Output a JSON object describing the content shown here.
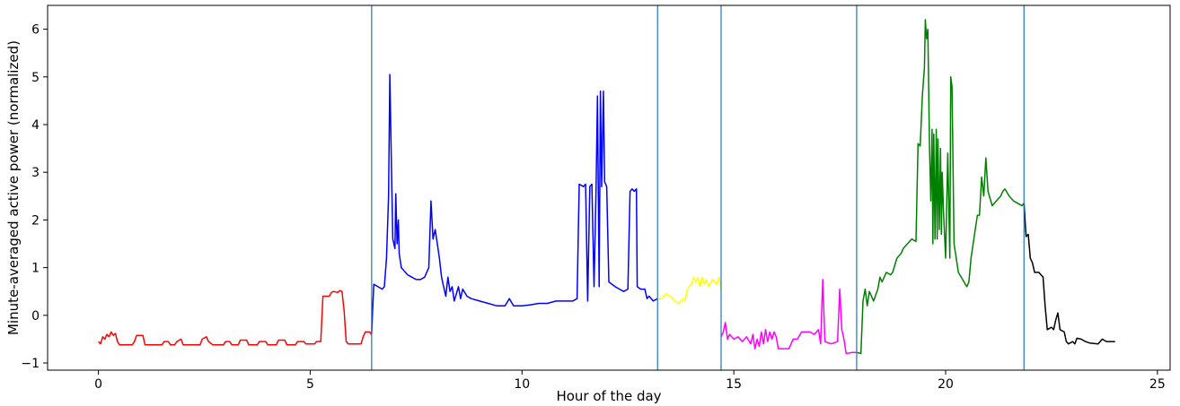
{
  "chart_data": {
    "type": "line",
    "title": "",
    "xlabel": "Hour of the day",
    "ylabel": "Minute-averaged active power (normalized)",
    "xlim": [
      -1.2,
      25.3
    ],
    "ylim": [
      -1.15,
      6.5
    ],
    "xticks": [
      0,
      5,
      10,
      15,
      20,
      25
    ],
    "xtick_labels": [
      "0",
      "5",
      "10",
      "15",
      "20",
      "25"
    ],
    "yticks": [
      -1,
      0,
      1,
      2,
      3,
      4,
      5,
      6
    ],
    "ytick_labels": [
      "−1",
      "0",
      "1",
      "2",
      "3",
      "4",
      "5",
      "6"
    ],
    "grid": false,
    "legend": "none",
    "segment_boundaries": [
      6.45,
      13.2,
      14.7,
      17.9,
      21.85
    ],
    "boundary_color": "#1f77b4",
    "series": [
      {
        "color": "#ff0000",
        "points": [
          [
            0,
            -0.55
          ],
          [
            0.05,
            -0.6
          ],
          [
            0.1,
            -0.45
          ],
          [
            0.15,
            -0.5
          ],
          [
            0.2,
            -0.4
          ],
          [
            0.25,
            -0.45
          ],
          [
            0.3,
            -0.35
          ],
          [
            0.35,
            -0.42
          ],
          [
            0.4,
            -0.38
          ],
          [
            0.45,
            -0.55
          ],
          [
            0.5,
            -0.62
          ],
          [
            0.8,
            -0.62
          ],
          [
            0.85,
            -0.55
          ],
          [
            0.9,
            -0.42
          ],
          [
            1.05,
            -0.42
          ],
          [
            1.1,
            -0.62
          ],
          [
            1.5,
            -0.62
          ],
          [
            1.55,
            -0.55
          ],
          [
            1.65,
            -0.55
          ],
          [
            1.7,
            -0.62
          ],
          [
            1.8,
            -0.62
          ],
          [
            1.85,
            -0.55
          ],
          [
            1.95,
            -0.5
          ],
          [
            2.0,
            -0.62
          ],
          [
            2.4,
            -0.62
          ],
          [
            2.45,
            -0.5
          ],
          [
            2.55,
            -0.45
          ],
          [
            2.6,
            -0.55
          ],
          [
            2.7,
            -0.62
          ],
          [
            2.95,
            -0.62
          ],
          [
            3.0,
            -0.55
          ],
          [
            3.1,
            -0.55
          ],
          [
            3.15,
            -0.62
          ],
          [
            3.3,
            -0.62
          ],
          [
            3.35,
            -0.52
          ],
          [
            3.5,
            -0.52
          ],
          [
            3.55,
            -0.62
          ],
          [
            3.75,
            -0.62
          ],
          [
            3.8,
            -0.55
          ],
          [
            3.95,
            -0.55
          ],
          [
            4.0,
            -0.62
          ],
          [
            4.2,
            -0.62
          ],
          [
            4.25,
            -0.52
          ],
          [
            4.4,
            -0.52
          ],
          [
            4.45,
            -0.62
          ],
          [
            4.65,
            -0.62
          ],
          [
            4.7,
            -0.55
          ],
          [
            4.85,
            -0.55
          ],
          [
            4.9,
            -0.6
          ],
          [
            5.1,
            -0.6
          ],
          [
            5.15,
            -0.55
          ],
          [
            5.25,
            -0.55
          ],
          [
            5.3,
            0.4
          ],
          [
            5.45,
            0.4
          ],
          [
            5.5,
            0.48
          ],
          [
            5.55,
            0.5
          ],
          [
            5.65,
            0.48
          ],
          [
            5.7,
            0.52
          ],
          [
            5.75,
            0.5
          ],
          [
            5.8,
            0.1
          ],
          [
            5.85,
            -0.55
          ],
          [
            5.9,
            -0.6
          ],
          [
            6.2,
            -0.6
          ],
          [
            6.25,
            -0.45
          ],
          [
            6.3,
            -0.35
          ],
          [
            6.4,
            -0.35
          ],
          [
            6.45,
            -0.4
          ]
        ]
      },
      {
        "color": "#0000ff",
        "points": [
          [
            6.45,
            -0.4
          ],
          [
            6.5,
            0.65
          ],
          [
            6.6,
            0.6
          ],
          [
            6.7,
            0.55
          ],
          [
            6.75,
            0.6
          ],
          [
            6.8,
            1.2
          ],
          [
            6.85,
            2.5
          ],
          [
            6.88,
            5.05
          ],
          [
            6.92,
            3.0
          ],
          [
            6.95,
            1.6
          ],
          [
            7.0,
            1.4
          ],
          [
            7.02,
            2.55
          ],
          [
            7.05,
            1.5
          ],
          [
            7.08,
            2.0
          ],
          [
            7.1,
            1.3
          ],
          [
            7.15,
            1.0
          ],
          [
            7.2,
            0.95
          ],
          [
            7.3,
            0.85
          ],
          [
            7.4,
            0.8
          ],
          [
            7.5,
            0.75
          ],
          [
            7.6,
            0.75
          ],
          [
            7.7,
            0.8
          ],
          [
            7.8,
            1.0
          ],
          [
            7.85,
            2.4
          ],
          [
            7.9,
            1.6
          ],
          [
            7.95,
            1.8
          ],
          [
            8.0,
            1.5
          ],
          [
            8.05,
            1.2
          ],
          [
            8.1,
            0.8
          ],
          [
            8.15,
            0.6
          ],
          [
            8.2,
            0.4
          ],
          [
            8.25,
            0.8
          ],
          [
            8.3,
            0.5
          ],
          [
            8.35,
            0.6
          ],
          [
            8.4,
            0.3
          ],
          [
            8.5,
            0.6
          ],
          [
            8.55,
            0.35
          ],
          [
            8.6,
            0.55
          ],
          [
            8.7,
            0.4
          ],
          [
            8.8,
            0.35
          ],
          [
            9.0,
            0.3
          ],
          [
            9.2,
            0.25
          ],
          [
            9.4,
            0.2
          ],
          [
            9.6,
            0.2
          ],
          [
            9.7,
            0.35
          ],
          [
            9.8,
            0.2
          ],
          [
            10.0,
            0.2
          ],
          [
            10.2,
            0.22
          ],
          [
            10.4,
            0.25
          ],
          [
            10.6,
            0.25
          ],
          [
            10.8,
            0.3
          ],
          [
            11.0,
            0.3
          ],
          [
            11.2,
            0.3
          ],
          [
            11.3,
            0.35
          ],
          [
            11.35,
            2.75
          ],
          [
            11.45,
            2.7
          ],
          [
            11.5,
            2.75
          ],
          [
            11.55,
            0.3
          ],
          [
            11.6,
            2.7
          ],
          [
            11.65,
            2.75
          ],
          [
            11.7,
            0.6
          ],
          [
            11.75,
            2.7
          ],
          [
            11.78,
            4.6
          ],
          [
            11.82,
            0.6
          ],
          [
            11.85,
            4.7
          ],
          [
            11.88,
            2.7
          ],
          [
            11.92,
            4.7
          ],
          [
            11.95,
            2.8
          ],
          [
            12.0,
            2.7
          ],
          [
            12.05,
            0.7
          ],
          [
            12.2,
            0.6
          ],
          [
            12.3,
            0.55
          ],
          [
            12.4,
            0.5
          ],
          [
            12.5,
            0.55
          ],
          [
            12.55,
            2.6
          ],
          [
            12.6,
            2.65
          ],
          [
            12.65,
            2.6
          ],
          [
            12.7,
            2.65
          ],
          [
            12.72,
            0.6
          ],
          [
            12.8,
            0.55
          ],
          [
            12.9,
            0.55
          ],
          [
            12.95,
            0.35
          ],
          [
            13.0,
            0.4
          ],
          [
            13.1,
            0.3
          ],
          [
            13.2,
            0.35
          ]
        ]
      },
      {
        "color": "#ffff00",
        "points": [
          [
            13.2,
            0.35
          ],
          [
            13.3,
            0.35
          ],
          [
            13.4,
            0.45
          ],
          [
            13.5,
            0.4
          ],
          [
            13.6,
            0.3
          ],
          [
            13.7,
            0.25
          ],
          [
            13.8,
            0.35
          ],
          [
            13.85,
            0.3
          ],
          [
            13.9,
            0.55
          ],
          [
            14.0,
            0.65
          ],
          [
            14.05,
            0.8
          ],
          [
            14.1,
            0.7
          ],
          [
            14.15,
            0.8
          ],
          [
            14.2,
            0.6
          ],
          [
            14.25,
            0.8
          ],
          [
            14.3,
            0.65
          ],
          [
            14.35,
            0.75
          ],
          [
            14.4,
            0.6
          ],
          [
            14.5,
            0.75
          ],
          [
            14.6,
            0.65
          ],
          [
            14.65,
            0.8
          ],
          [
            14.7,
            0.55
          ]
        ]
      },
      {
        "color": "#ff00ff",
        "points": [
          [
            14.7,
            -0.45
          ],
          [
            14.75,
            -0.35
          ],
          [
            14.8,
            -0.15
          ],
          [
            14.85,
            -0.5
          ],
          [
            14.9,
            -0.4
          ],
          [
            15.0,
            -0.5
          ],
          [
            15.1,
            -0.45
          ],
          [
            15.2,
            -0.55
          ],
          [
            15.3,
            -0.45
          ],
          [
            15.4,
            -0.6
          ],
          [
            15.45,
            -0.4
          ],
          [
            15.5,
            -0.7
          ],
          [
            15.55,
            -0.5
          ],
          [
            15.6,
            -0.65
          ],
          [
            15.65,
            -0.35
          ],
          [
            15.7,
            -0.6
          ],
          [
            15.75,
            -0.3
          ],
          [
            15.8,
            -0.55
          ],
          [
            15.85,
            -0.35
          ],
          [
            15.9,
            -0.5
          ],
          [
            15.95,
            -0.35
          ],
          [
            16.0,
            -0.45
          ],
          [
            16.05,
            -0.7
          ],
          [
            16.3,
            -0.7
          ],
          [
            16.4,
            -0.5
          ],
          [
            16.5,
            -0.5
          ],
          [
            16.6,
            -0.35
          ],
          [
            16.8,
            -0.35
          ],
          [
            16.9,
            -0.4
          ],
          [
            17.0,
            -0.3
          ],
          [
            17.05,
            -0.6
          ],
          [
            17.1,
            0.75
          ],
          [
            17.15,
            -0.55
          ],
          [
            17.3,
            -0.6
          ],
          [
            17.45,
            -0.55
          ],
          [
            17.5,
            0.55
          ],
          [
            17.55,
            -0.3
          ],
          [
            17.6,
            -0.5
          ],
          [
            17.65,
            -0.8
          ],
          [
            17.8,
            -0.78
          ],
          [
            17.9,
            -0.78
          ]
        ]
      },
      {
        "color": "#008000",
        "points": [
          [
            17.9,
            -0.78
          ],
          [
            18.0,
            -0.8
          ],
          [
            18.05,
            0.3
          ],
          [
            18.1,
            0.55
          ],
          [
            18.15,
            0.2
          ],
          [
            18.2,
            0.5
          ],
          [
            18.3,
            0.3
          ],
          [
            18.4,
            0.55
          ],
          [
            18.45,
            0.8
          ],
          [
            18.5,
            0.7
          ],
          [
            18.6,
            0.9
          ],
          [
            18.7,
            0.85
          ],
          [
            18.75,
            0.9
          ],
          [
            18.85,
            1.2
          ],
          [
            18.95,
            1.3
          ],
          [
            19.0,
            1.4
          ],
          [
            19.1,
            1.5
          ],
          [
            19.2,
            1.6
          ],
          [
            19.3,
            1.55
          ],
          [
            19.35,
            3.6
          ],
          [
            19.4,
            3.55
          ],
          [
            19.45,
            4.6
          ],
          [
            19.5,
            5.2
          ],
          [
            19.52,
            6.2
          ],
          [
            19.55,
            5.8
          ],
          [
            19.58,
            6.0
          ],
          [
            19.62,
            3.5
          ],
          [
            19.65,
            2.4
          ],
          [
            19.68,
            3.9
          ],
          [
            19.7,
            1.5
          ],
          [
            19.72,
            3.8
          ],
          [
            19.75,
            1.6
          ],
          [
            19.78,
            3.9
          ],
          [
            19.8,
            1.6
          ],
          [
            19.82,
            3.7
          ],
          [
            19.85,
            1.8
          ],
          [
            19.88,
            3.5
          ],
          [
            19.9,
            1.7
          ],
          [
            19.92,
            3.0
          ],
          [
            19.95,
            2.2
          ],
          [
            20.0,
            1.2
          ],
          [
            20.05,
            3.4
          ],
          [
            20.1,
            1.2
          ],
          [
            20.12,
            5.0
          ],
          [
            20.15,
            4.8
          ],
          [
            20.2,
            1.5
          ],
          [
            20.3,
            0.9
          ],
          [
            20.4,
            0.75
          ],
          [
            20.5,
            0.6
          ],
          [
            20.55,
            0.7
          ],
          [
            20.6,
            1.2
          ],
          [
            20.7,
            1.8
          ],
          [
            20.75,
            2.1
          ],
          [
            20.8,
            2.1
          ],
          [
            20.85,
            2.9
          ],
          [
            20.9,
            2.5
          ],
          [
            20.95,
            3.3
          ],
          [
            21.0,
            2.6
          ],
          [
            21.1,
            2.3
          ],
          [
            21.2,
            2.4
          ],
          [
            21.3,
            2.5
          ],
          [
            21.35,
            2.6
          ],
          [
            21.4,
            2.65
          ],
          [
            21.5,
            2.5
          ],
          [
            21.6,
            2.4
          ],
          [
            21.7,
            2.35
          ],
          [
            21.8,
            2.3
          ],
          [
            21.85,
            2.35
          ]
        ]
      },
      {
        "color": "#000000",
        "points": [
          [
            21.85,
            2.35
          ],
          [
            21.9,
            1.65
          ],
          [
            21.95,
            1.7
          ],
          [
            22.0,
            1.2
          ],
          [
            22.05,
            1.1
          ],
          [
            22.1,
            0.9
          ],
          [
            22.2,
            0.9
          ],
          [
            22.3,
            0.8
          ],
          [
            22.35,
            0.2
          ],
          [
            22.4,
            -0.3
          ],
          [
            22.5,
            -0.25
          ],
          [
            22.55,
            -0.3
          ],
          [
            22.6,
            -0.1
          ],
          [
            22.65,
            0.05
          ],
          [
            22.7,
            -0.3
          ],
          [
            22.8,
            -0.35
          ],
          [
            22.85,
            -0.55
          ],
          [
            22.9,
            -0.6
          ],
          [
            23.0,
            -0.55
          ],
          [
            23.05,
            -0.6
          ],
          [
            23.1,
            -0.48
          ],
          [
            23.2,
            -0.5
          ],
          [
            23.3,
            -0.55
          ],
          [
            23.4,
            -0.58
          ],
          [
            23.6,
            -0.6
          ],
          [
            23.7,
            -0.5
          ],
          [
            23.8,
            -0.55
          ],
          [
            24.0,
            -0.55
          ]
        ]
      }
    ]
  }
}
